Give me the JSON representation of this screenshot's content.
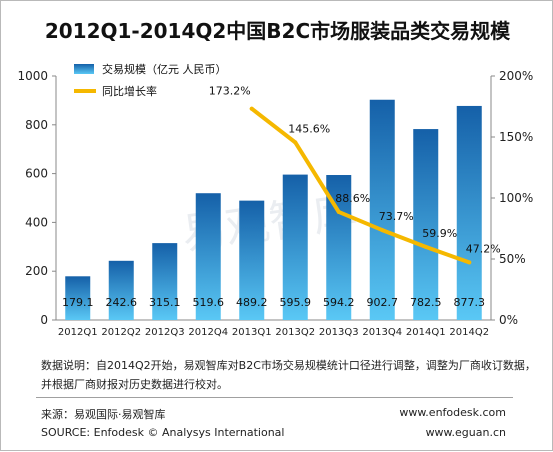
{
  "chart_data": {
    "type": "bar",
    "title": "2012Q1-2014Q2中国B2C市场服装品类交易规模",
    "categories": [
      "2012Q1",
      "2012Q2",
      "2012Q3",
      "2012Q4",
      "2013Q1",
      "2013Q2",
      "2013Q3",
      "2013Q4",
      "2014Q1",
      "2014Q2"
    ],
    "series": [
      {
        "name": "交易规模（亿元 人民币）",
        "type": "bar",
        "axis": "left",
        "values": [
          179.1,
          242.6,
          315.1,
          519.6,
          489.2,
          595.9,
          594.2,
          902.7,
          782.5,
          877.3
        ],
        "labels": [
          "179.1",
          "242.6",
          "315.1",
          "519.6",
          "489.2",
          "595.9",
          "594.2",
          "902.7",
          "782.5",
          "877.3"
        ]
      },
      {
        "name": "同比增长率",
        "type": "line",
        "axis": "right",
        "values": [
          null,
          null,
          null,
          null,
          173.2,
          145.6,
          88.6,
          73.7,
          59.9,
          47.2
        ],
        "labels": [
          "",
          "",
          "",
          "",
          "173.2%",
          "145.6%",
          "88.6%",
          "73.7%",
          "59.9%",
          "47.2%"
        ]
      }
    ],
    "left_axis": {
      "ylim": [
        0,
        1000
      ],
      "ticks": [
        "0",
        "200",
        "400",
        "600",
        "800",
        "1000"
      ]
    },
    "right_axis": {
      "ylim": [
        0,
        200
      ],
      "ticks": [
        "0%",
        "50%",
        "100%",
        "150%",
        "200%"
      ]
    },
    "legend_position": "top-left",
    "grid": false,
    "colors": {
      "bar_top": "#1560a8",
      "bar_bottom": "#5ac8f5",
      "line": "#f5b800"
    },
    "watermark": "易观智库"
  },
  "footer": {
    "note_line1": "数据说明：自2014Q2开始，易观智库对B2C市场交易规模统计口径进行调整，调整为厂商收订数据，",
    "note_line2": "并根据厂商财报对历史数据进行校对。",
    "source_cn": "来源：易观国际·易观智库",
    "source_en": "SOURCE: Enfodesk © Analysys International",
    "site1": "www.enfodesk.com",
    "site2": "www.eguan.cn"
  }
}
